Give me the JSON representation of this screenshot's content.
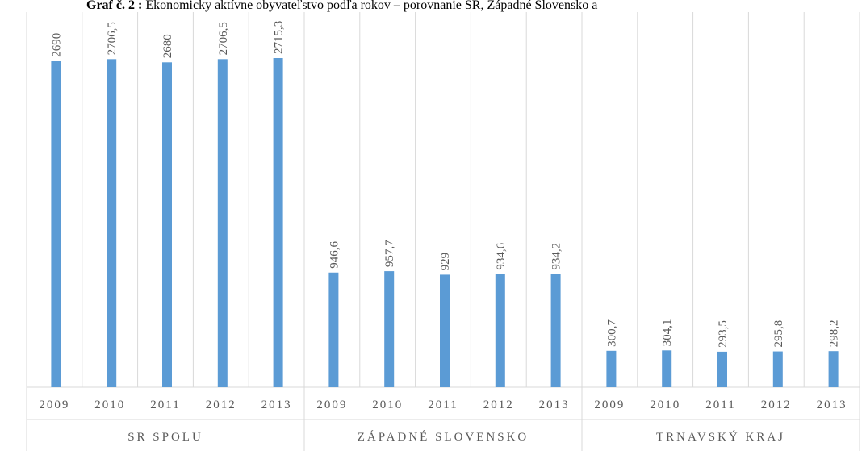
{
  "chart_data": {
    "type": "bar",
    "title_label": "Graf č. 2 :",
    "title": "Ekonomicky aktívne obyvateľstvo podľa rokov – porovnanie SR, Západné Slovensko a",
    "groups": [
      "SR SPOLU",
      "ZÁPADNÉ SLOVENSKO",
      "TRNAVSKÝ KRAJ"
    ],
    "categories": [
      "2009",
      "2010",
      "2011",
      "2012",
      "2013",
      "2009",
      "2010",
      "2011",
      "2012",
      "2013",
      "2009",
      "2010",
      "2011",
      "2012",
      "2013"
    ],
    "values": [
      2690,
      2706.5,
      2680,
      2706.5,
      2715.3,
      946.6,
      957.7,
      929,
      934.6,
      934.2,
      300.7,
      304.1,
      293.5,
      295.8,
      298.2
    ],
    "value_labels": [
      "2690",
      "2706,5",
      "2680",
      "2706,5",
      "2715,3",
      "946,6",
      "957,7",
      "929",
      "934,6",
      "934,2",
      "300,7",
      "304,1",
      "293,5",
      "295,8",
      "298,2"
    ],
    "color": "#5b9bd5"
  }
}
